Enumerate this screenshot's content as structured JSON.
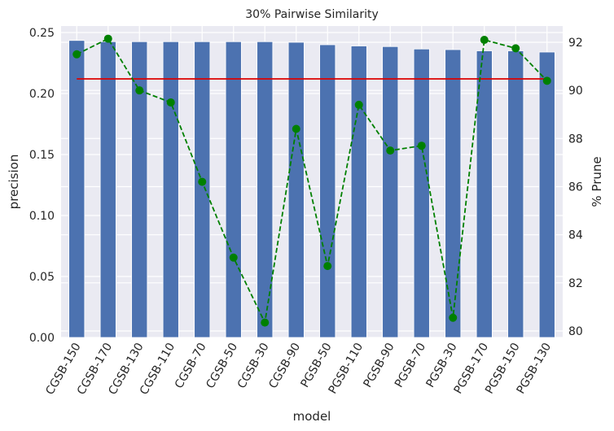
{
  "chart_data": {
    "type": "bar",
    "title": "30% Pairwise Similarity",
    "xlabel": "model",
    "ylabel": "precision",
    "y2label": "% Prune",
    "categories": [
      "CGSB-150",
      "CGSB-170",
      "CGSB-130",
      "CGSB-110",
      "CGSB-70",
      "CGSB-50",
      "CGSB-30",
      "CGSB-90",
      "PGSB-50",
      "PGSB-110",
      "PGSB-90",
      "PGSB-70",
      "PGSB-30",
      "PGSB-170",
      "PGSB-150",
      "PGSB-130"
    ],
    "series": [
      {
        "axis": "left",
        "kind": "bar",
        "color": "#4c72b0",
        "values": [
          0.2435,
          0.2425,
          0.2425,
          0.2425,
          0.2425,
          0.2425,
          0.2425,
          0.242,
          0.24,
          0.239,
          0.2385,
          0.2365,
          0.236,
          0.235,
          0.235,
          0.234
        ]
      },
      {
        "axis": "left",
        "kind": "line",
        "color": "#dd0000",
        "values": [
          0.212,
          0.212,
          0.212,
          0.212,
          0.212,
          0.212,
          0.212,
          0.212,
          0.212,
          0.212,
          0.212,
          0.212,
          0.212,
          0.212,
          0.212,
          0.212
        ]
      },
      {
        "axis": "right",
        "kind": "line-dashed-markers",
        "color": "#008000",
        "values": [
          91.5,
          92.15,
          90.0,
          89.5,
          86.2,
          83.05,
          80.35,
          88.4,
          82.7,
          89.4,
          87.5,
          87.7,
          80.55,
          92.1,
          91.75,
          90.4
        ]
      }
    ],
    "ylim": [
      0,
      0.25
    ],
    "y2lim": [
      80,
      92
    ],
    "yticks": [
      "0.00",
      "0.05",
      "0.10",
      "0.15",
      "0.20",
      "0.25"
    ],
    "y2ticks": [
      "80",
      "82",
      "84",
      "86",
      "88",
      "90",
      "92"
    ],
    "grid": true,
    "background": "#eaeaf2"
  }
}
